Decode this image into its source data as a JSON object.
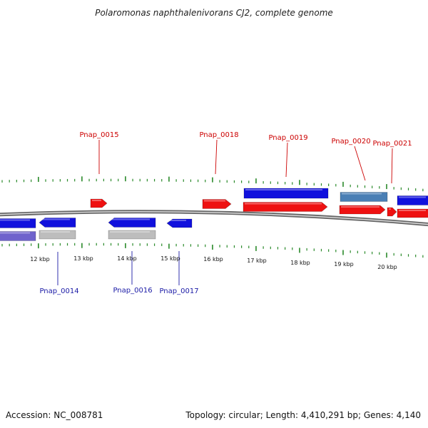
{
  "title": "Polaromonas naphthalenivorans CJ2, complete genome",
  "footer": {
    "accession": "Accession: NC_008781",
    "summary": "Topology: circular; Length: 4,410,291 bp; Genes: 4,140"
  },
  "colors": {
    "forward_gene": "#ee1111",
    "reverse_gene": "#1111dd",
    "rna_gene": "#4a7fb5",
    "pseudo_gene": "#bdbdbd",
    "lavender_gene": "#6f63cc",
    "tick": "#2a8a2a",
    "backbone": "#8a8a8a"
  },
  "scale": {
    "labels": [
      "12 kbp",
      "13 kbp",
      "14 kbp",
      "15 kbp",
      "16 kbp",
      "17 kbp",
      "18 kbp",
      "19 kbp",
      "20 kbp"
    ]
  },
  "labels": {
    "forward": [
      {
        "id": "Pnap_0015"
      },
      {
        "id": "Pnap_0018"
      },
      {
        "id": "Pnap_0019"
      },
      {
        "id": "Pnap_0020"
      },
      {
        "id": "Pnap_0021"
      }
    ],
    "reverse": [
      {
        "id": "Pnap_0014"
      },
      {
        "id": "Pnap_0016"
      },
      {
        "id": "Pnap_0017"
      }
    ]
  }
}
